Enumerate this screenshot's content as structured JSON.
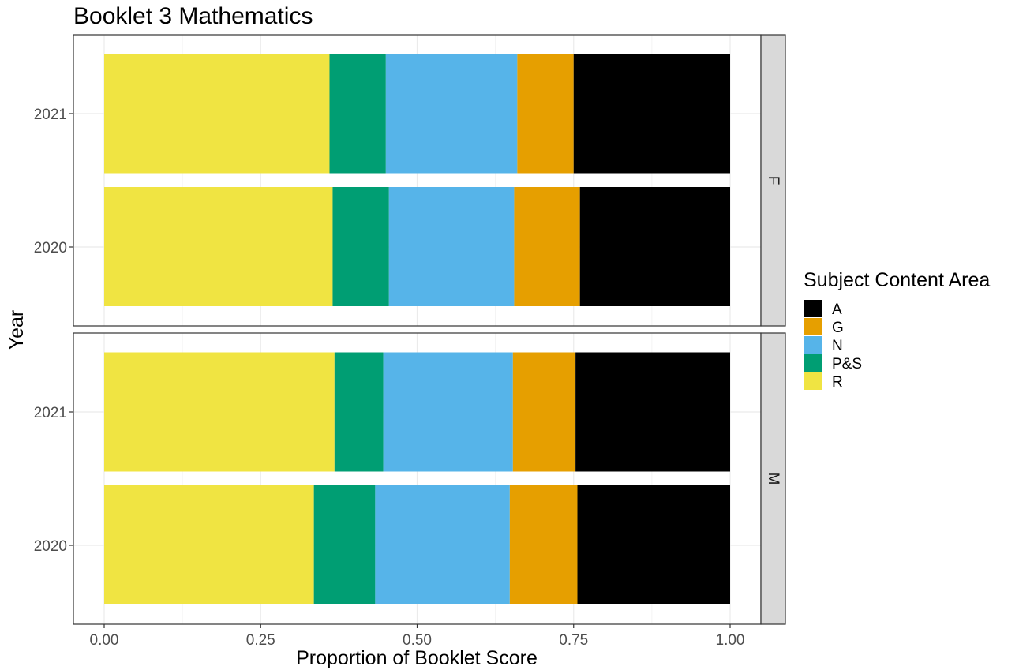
{
  "chart_data": {
    "type": "bar",
    "orientation": "horizontal",
    "stacked": true,
    "title": "Booklet 3 Mathematics",
    "xlabel": "Proportion of Booklet Score",
    "ylabel": "Year",
    "xlim": [
      0,
      1
    ],
    "x_ticks": [
      "0.00",
      "0.25",
      "0.50",
      "0.75",
      "1.00"
    ],
    "grid": true,
    "legend": {
      "title": "Subject Content Area",
      "placement": "right",
      "entries": [
        {
          "name": "A",
          "color": "#000000"
        },
        {
          "name": "G",
          "color": "#E69F00"
        },
        {
          "name": "N",
          "color": "#56B4E9"
        },
        {
          "name": "P&S",
          "color": "#009E73"
        },
        {
          "name": "R",
          "color": "#F0E442"
        }
      ]
    },
    "stack_order": [
      "R",
      "P&S",
      "N",
      "G",
      "A"
    ],
    "facets": [
      {
        "label": "F",
        "bars": [
          {
            "year": "2021",
            "values": {
              "R": 0.36,
              "P&S": 0.09,
              "N": 0.21,
              "G": 0.09,
              "A": 0.25
            }
          },
          {
            "year": "2020",
            "values": {
              "R": 0.365,
              "P&S": 0.09,
              "N": 0.2,
              "G": 0.105,
              "A": 0.24
            }
          }
        ]
      },
      {
        "label": "M",
        "bars": [
          {
            "year": "2021",
            "values": {
              "R": 0.368,
              "P&S": 0.078,
              "N": 0.207,
              "G": 0.1,
              "A": 0.247
            }
          },
          {
            "year": "2020",
            "values": {
              "R": 0.335,
              "P&S": 0.098,
              "N": 0.215,
              "G": 0.108,
              "A": 0.244
            }
          }
        ]
      }
    ]
  }
}
